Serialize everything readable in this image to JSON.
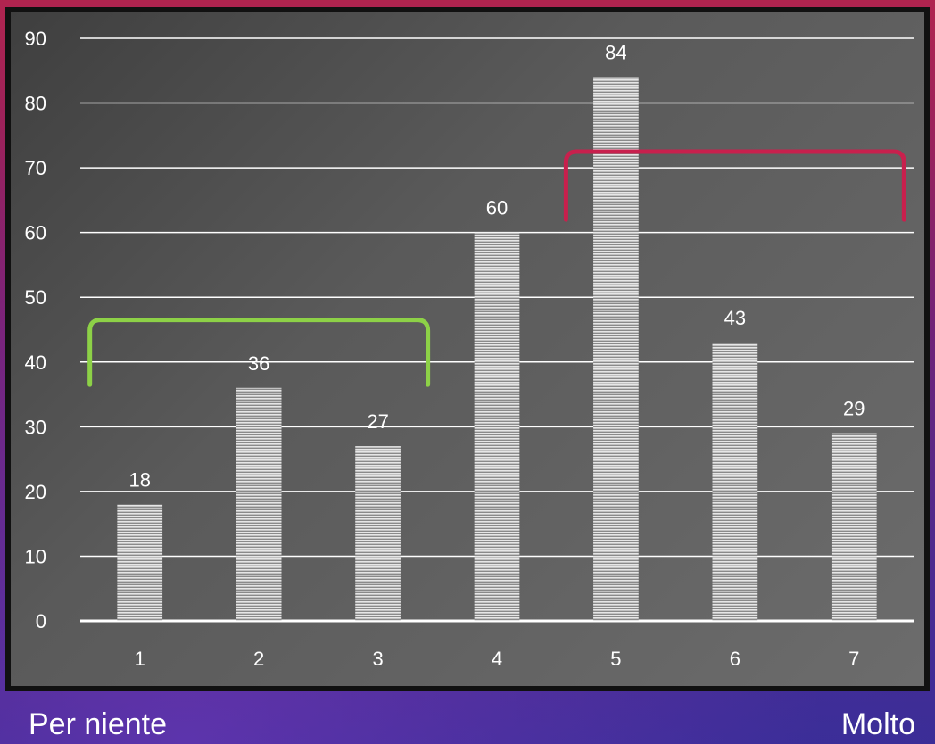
{
  "chart_data": {
    "type": "bar",
    "categories": [
      "1",
      "2",
      "3",
      "4",
      "5",
      "6",
      "7"
    ],
    "values": [
      18,
      36,
      27,
      60,
      84,
      43,
      29
    ],
    "data_labels": [
      "18",
      "36",
      "27",
      "60",
      "84",
      "43",
      "29"
    ],
    "ylim": [
      0,
      90
    ],
    "yticks": [
      "0",
      "10",
      "20",
      "30",
      "40",
      "50",
      "60",
      "70",
      "80",
      "90"
    ],
    "title": "",
    "xlabel": "",
    "ylabel": "",
    "grid": true,
    "bar_color": "#d8d8d8",
    "annotations": [
      {
        "type": "bracket",
        "categories": [
          "1",
          "3"
        ],
        "color": "#8dd147"
      },
      {
        "type": "bracket",
        "categories": [
          "5",
          "7"
        ],
        "color": "#c8204d"
      }
    ]
  },
  "footer": {
    "left_label": "Per niente",
    "right_label": "Molto"
  }
}
